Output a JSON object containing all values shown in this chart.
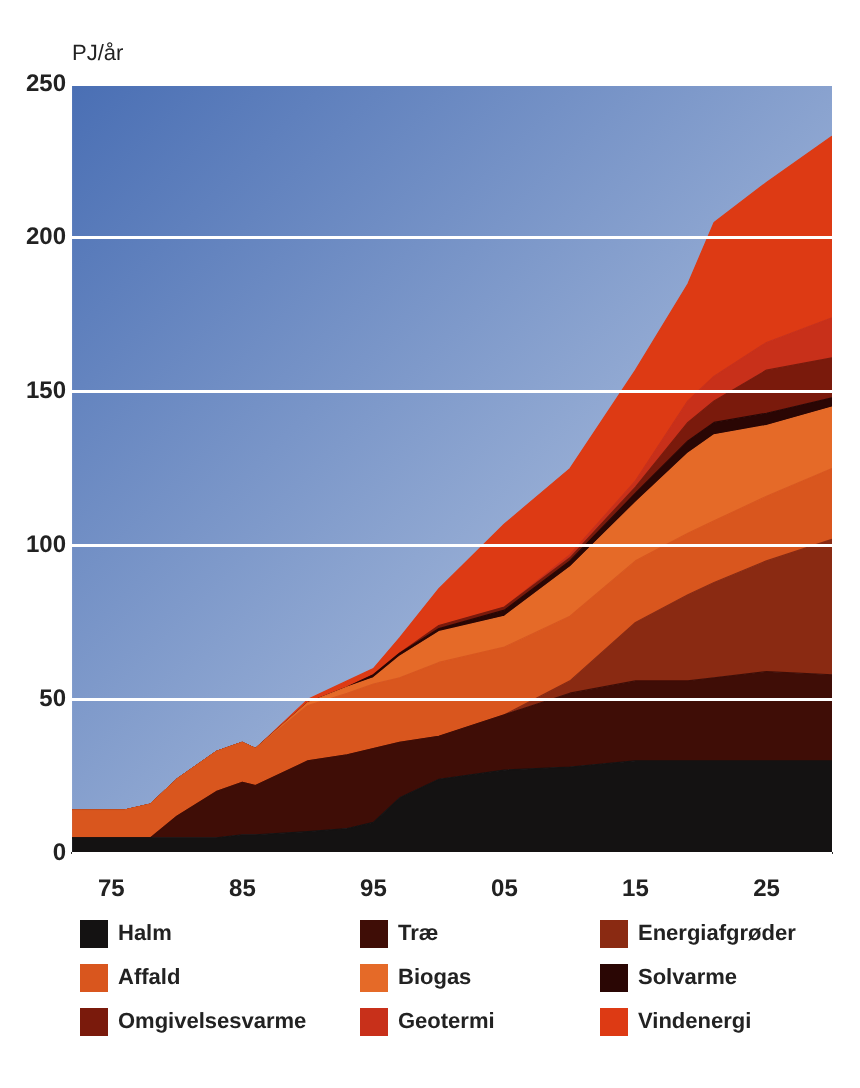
{
  "chart_data": {
    "type": "area",
    "stacked": true,
    "ylabel": "PJ/år",
    "x": [
      1972,
      1976,
      1978,
      1980,
      1983,
      1985,
      1986,
      1990,
      1993,
      1995,
      1997,
      2000,
      2005,
      2010,
      2015,
      2019,
      2021,
      2025,
      2030
    ],
    "xlim": [
      1972,
      2030
    ],
    "xticks": [
      {
        "value": 1975,
        "label": "75"
      },
      {
        "value": 1985,
        "label": "85"
      },
      {
        "value": 1995,
        "label": "95"
      },
      {
        "value": 2005,
        "label": "05"
      },
      {
        "value": 2015,
        "label": "15"
      },
      {
        "value": 2025,
        "label": "25"
      }
    ],
    "ylim": [
      0,
      250
    ],
    "yticks": [
      0,
      50,
      100,
      150,
      200,
      250
    ],
    "grid": "y",
    "legend": "bottom",
    "series": [
      {
        "name": "Halm",
        "color": "#141212",
        "values": [
          5,
          5,
          5,
          5,
          5,
          6,
          6,
          7,
          8,
          10,
          18,
          24,
          27,
          28,
          30,
          30,
          30,
          30,
          30
        ]
      },
      {
        "name": "Træ",
        "color": "#3f0d06",
        "values": [
          0,
          0,
          0,
          7,
          15,
          17,
          16,
          23,
          24,
          24,
          18,
          14,
          18,
          24,
          26,
          26,
          27,
          29,
          28
        ]
      },
      {
        "name": "Energiafgrøder",
        "color": "#8a2a12",
        "values": [
          0,
          0,
          0,
          0,
          0,
          0,
          0,
          0,
          0,
          0,
          0,
          0,
          0,
          4,
          19,
          28,
          31,
          36,
          44
        ]
      },
      {
        "name": "Affald",
        "color": "#d9561e",
        "values": [
          9,
          9,
          11,
          12,
          13,
          13,
          12,
          18,
          20,
          21,
          21,
          24,
          22,
          21,
          20,
          20,
          20,
          21,
          23
        ]
      },
      {
        "name": "Biogas",
        "color": "#e56a28",
        "values": [
          0,
          0,
          0,
          0,
          0,
          0,
          0,
          1,
          2,
          2,
          7,
          10,
          10,
          16,
          19,
          26,
          28,
          23,
          20
        ]
      },
      {
        "name": "Solvarme",
        "color": "#2a0604",
        "values": [
          0,
          0,
          0,
          0,
          0,
          0,
          0,
          0,
          0,
          1,
          1,
          1,
          2,
          2,
          3,
          4,
          4,
          4,
          3
        ]
      },
      {
        "name": "Omgivelsesvarme",
        "color": "#7a1a0c",
        "values": [
          0,
          0,
          0,
          0,
          0,
          0,
          0,
          0,
          0,
          0,
          0,
          1,
          1,
          1,
          2,
          6,
          7,
          14,
          13
        ]
      },
      {
        "name": "Geotermi",
        "color": "#c8301a",
        "values": [
          0,
          0,
          0,
          0,
          0,
          0,
          0,
          0,
          0,
          0,
          0,
          0,
          0,
          1,
          2,
          7,
          8,
          9,
          13
        ]
      },
      {
        "name": "Vindenergi",
        "color": "#dd3a14",
        "values": [
          0,
          0,
          0,
          0,
          0,
          0,
          0,
          1,
          2,
          2,
          5,
          12,
          27,
          28,
          36,
          38,
          50,
          52,
          59
        ]
      }
    ]
  }
}
